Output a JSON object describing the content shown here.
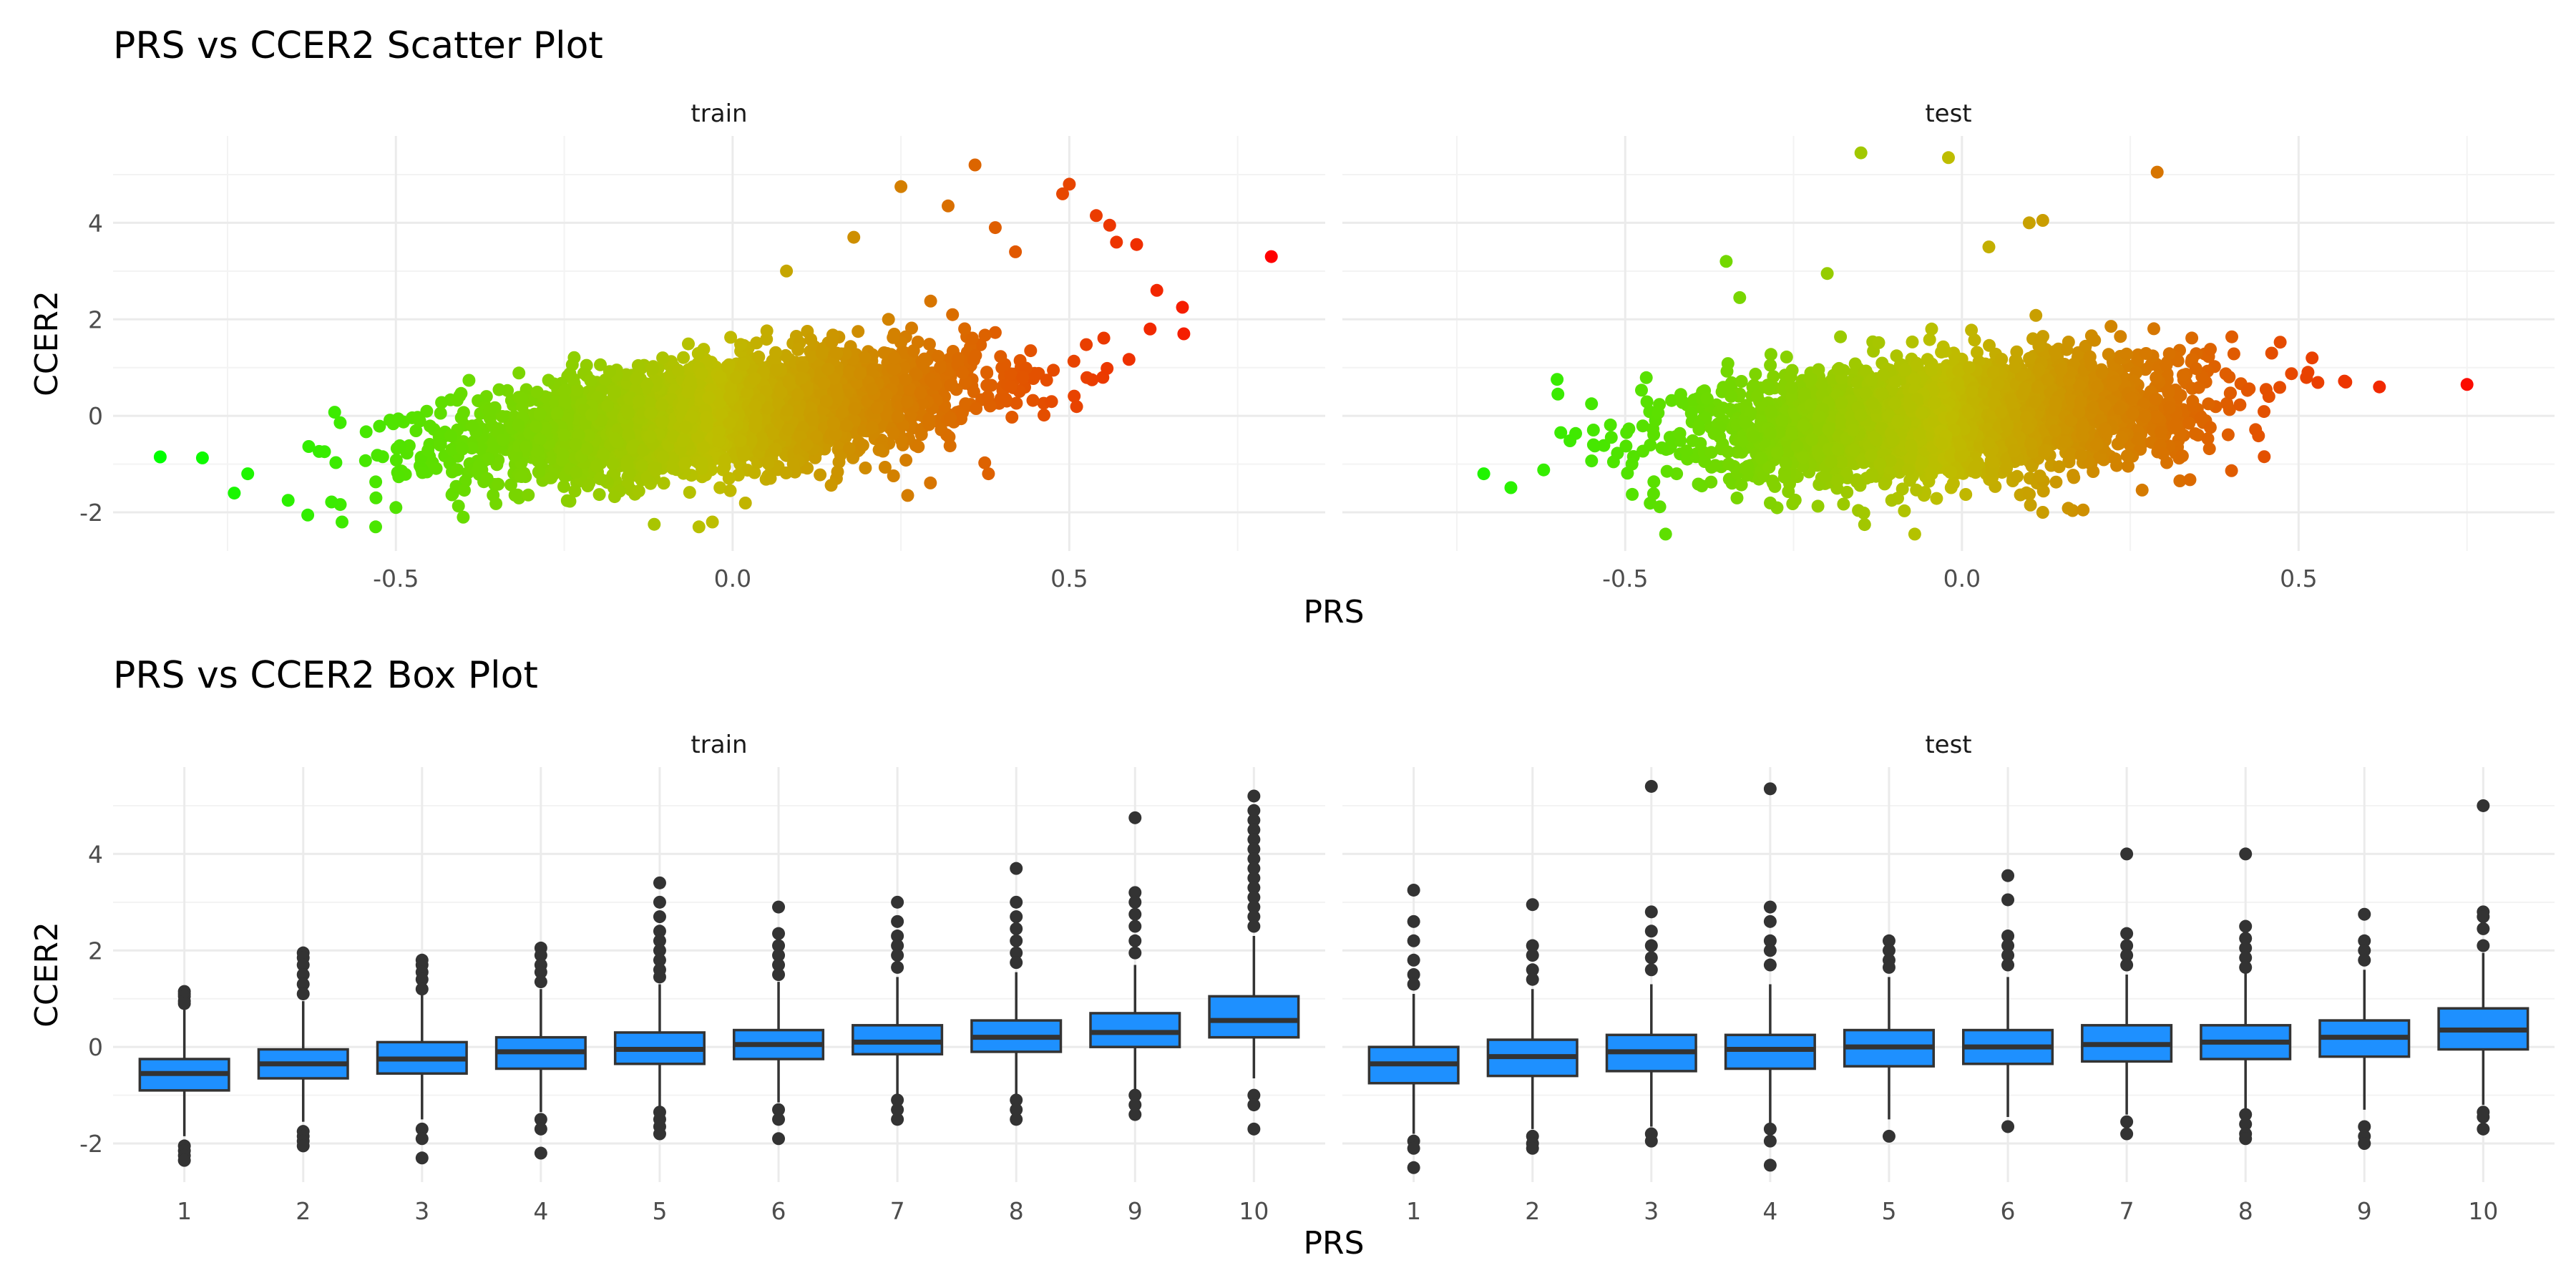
{
  "sections": {
    "scatter_title": "PRS vs CCER2 Scatter Plot",
    "box_title": "PRS vs CCER2 Box Plot"
  },
  "colors": {
    "gradient_low": "#00ff00",
    "gradient_high": "#ff0000",
    "box_fill": "#1e90ff",
    "box_stroke": "#333333",
    "grid_major": "#ebebeb"
  },
  "chart_data": [
    {
      "type": "scatter",
      "title": "PRS vs CCER2 Scatter Plot",
      "xlabel": "PRS",
      "ylabel": "CCER2",
      "facets": [
        "train",
        "test"
      ],
      "xlim": [
        -0.92,
        0.88
      ],
      "ylim": [
        -2.8,
        5.8
      ],
      "xticks": [
        -0.5,
        0.0,
        0.5
      ],
      "xtick_labels": [
        "-0.5",
        "0.0",
        "0.5"
      ],
      "yticks": [
        -2,
        0,
        2,
        4
      ],
      "ytick_labels": [
        "-2",
        "0",
        "2",
        "4"
      ],
      "color_by": "PRS",
      "color_scale": [
        "#00ff00",
        "#ff0000"
      ],
      "cloud": [
        {
          "facet": "train",
          "n": 3200,
          "x_mean": -0.02,
          "x_sd": 0.19,
          "slope": 1.5,
          "intercept": 0.05,
          "noise_sd": 0.55
        },
        {
          "facet": "test",
          "n": 2800,
          "x_mean": -0.02,
          "x_sd": 0.18,
          "slope": 0.9,
          "intercept": 0.0,
          "noise_sd": 0.6
        }
      ],
      "series": [
        {
          "name": "train",
          "points": [
            [
              -0.85,
              -0.85
            ],
            [
              -0.74,
              -1.6
            ],
            [
              -0.72,
              -1.2
            ],
            [
              -0.66,
              -1.75
            ],
            [
              -0.58,
              -2.2
            ],
            [
              -0.53,
              -2.3
            ],
            [
              -0.5,
              -1.9
            ],
            [
              -0.4,
              -2.1
            ],
            [
              0.25,
              4.75
            ],
            [
              0.32,
              4.35
            ],
            [
              0.36,
              5.2
            ],
            [
              0.39,
              3.9
            ],
            [
              0.42,
              3.4
            ],
            [
              0.49,
              4.6
            ],
            [
              0.5,
              4.8
            ],
            [
              0.54,
              4.15
            ],
            [
              0.56,
              3.95
            ],
            [
              0.57,
              3.6
            ],
            [
              0.6,
              3.55
            ],
            [
              0.62,
              1.8
            ],
            [
              0.63,
              2.6
            ],
            [
              0.67,
              1.7
            ],
            [
              0.8,
              3.3
            ],
            [
              0.08,
              3.0
            ],
            [
              0.18,
              3.7
            ],
            [
              -0.03,
              -2.2
            ],
            [
              -0.05,
              -2.3
            ],
            [
              0.26,
              -1.65
            ],
            [
              0.38,
              -1.2
            ]
          ]
        },
        {
          "name": "test",
          "points": [
            [
              -0.71,
              -1.2
            ],
            [
              -0.6,
              0.45
            ],
            [
              -0.55,
              0.25
            ],
            [
              -0.49,
              -1.0
            ],
            [
              -0.44,
              -2.45
            ],
            [
              -0.35,
              3.2
            ],
            [
              -0.33,
              2.45
            ],
            [
              -0.2,
              2.95
            ],
            [
              -0.15,
              5.45
            ],
            [
              -0.02,
              5.35
            ],
            [
              0.04,
              3.5
            ],
            [
              0.1,
              4.0
            ],
            [
              0.12,
              4.05
            ],
            [
              0.29,
              5.05
            ],
            [
              0.46,
              1.3
            ],
            [
              0.52,
              1.2
            ],
            [
              0.57,
              0.7
            ],
            [
              0.62,
              0.6
            ],
            [
              0.75,
              0.65
            ],
            [
              -0.07,
              -2.45
            ],
            [
              0.18,
              -1.95
            ],
            [
              0.12,
              -2.0
            ]
          ]
        }
      ]
    },
    {
      "type": "box",
      "title": "PRS vs CCER2 Box Plot",
      "xlabel": "PRS",
      "ylabel": "CCER2",
      "facets": [
        "train",
        "test"
      ],
      "categories": [
        "1",
        "2",
        "3",
        "4",
        "5",
        "6",
        "7",
        "8",
        "9",
        "10"
      ],
      "ylim": [
        -2.8,
        5.8
      ],
      "yticks": [
        -2,
        0,
        2,
        4
      ],
      "ytick_labels": [
        "-2",
        "0",
        "2",
        "4"
      ],
      "series": [
        {
          "name": "train",
          "boxes": [
            {
              "cat": "1",
              "q1": -0.9,
              "median": -0.55,
              "q3": -0.25,
              "low": -1.85,
              "high": 0.8,
              "outliers": [
                1.15,
                1.1,
                1.05,
                0.95,
                0.9,
                -2.05,
                -2.15,
                -2.25,
                -2.35
              ]
            },
            {
              "cat": "2",
              "q1": -0.65,
              "median": -0.35,
              "q3": -0.05,
              "low": -1.55,
              "high": 0.95,
              "outliers": [
                1.95,
                1.85,
                1.7,
                1.5,
                1.3,
                1.1,
                -1.75,
                -1.85,
                -1.95,
                -2.05
              ]
            },
            {
              "cat": "3",
              "q1": -0.55,
              "median": -0.25,
              "q3": 0.1,
              "low": -1.5,
              "high": 1.1,
              "outliers": [
                1.8,
                1.7,
                1.55,
                1.4,
                1.2,
                -1.7,
                -1.9,
                -2.3
              ]
            },
            {
              "cat": "4",
              "q1": -0.45,
              "median": -0.1,
              "q3": 0.2,
              "low": -1.35,
              "high": 1.2,
              "outliers": [
                2.05,
                1.9,
                1.7,
                1.55,
                1.35,
                -1.5,
                -1.7,
                -2.2
              ]
            },
            {
              "cat": "5",
              "q1": -0.35,
              "median": -0.05,
              "q3": 0.3,
              "low": -1.25,
              "high": 1.3,
              "outliers": [
                3.4,
                3.0,
                2.7,
                2.4,
                2.2,
                2.0,
                1.8,
                1.6,
                1.45,
                -1.35,
                -1.5,
                -1.65,
                -1.8
              ]
            },
            {
              "cat": "6",
              "q1": -0.25,
              "median": 0.05,
              "q3": 0.35,
              "low": -1.15,
              "high": 1.35,
              "outliers": [
                2.9,
                2.35,
                2.1,
                1.9,
                1.7,
                1.5,
                -1.3,
                -1.5,
                -1.9
              ]
            },
            {
              "cat": "7",
              "q1": -0.15,
              "median": 0.1,
              "q3": 0.45,
              "low": -1.05,
              "high": 1.45,
              "outliers": [
                3.0,
                2.6,
                2.3,
                2.1,
                1.9,
                1.65,
                -1.1,
                -1.3,
                -1.5
              ]
            },
            {
              "cat": "8",
              "q1": -0.1,
              "median": 0.2,
              "q3": 0.55,
              "low": -1.0,
              "high": 1.55,
              "outliers": [
                3.7,
                3.0,
                2.7,
                2.45,
                2.2,
                1.95,
                1.75,
                -1.1,
                -1.3,
                -1.5
              ]
            },
            {
              "cat": "9",
              "q1": 0.0,
              "median": 0.3,
              "q3": 0.7,
              "low": -0.9,
              "high": 1.7,
              "outliers": [
                4.75,
                3.2,
                3.0,
                2.75,
                2.5,
                2.2,
                1.95,
                -1.0,
                -1.2,
                -1.4
              ]
            },
            {
              "cat": "10",
              "q1": 0.2,
              "median": 0.55,
              "q3": 1.05,
              "low": -0.65,
              "high": 2.3,
              "outliers": [
                5.2,
                4.9,
                4.7,
                4.5,
                4.3,
                4.1,
                3.9,
                3.7,
                3.5,
                3.3,
                3.1,
                2.9,
                2.7,
                2.5,
                -1.0,
                -1.2,
                -1.7
              ]
            }
          ]
        },
        {
          "name": "test",
          "boxes": [
            {
              "cat": "1",
              "q1": -0.75,
              "median": -0.35,
              "q3": 0.0,
              "low": -1.8,
              "high": 1.1,
              "outliers": [
                3.25,
                2.6,
                2.2,
                1.8,
                1.5,
                1.3,
                -1.95,
                -2.1,
                -2.5
              ]
            },
            {
              "cat": "2",
              "q1": -0.6,
              "median": -0.2,
              "q3": 0.15,
              "low": -1.7,
              "high": 1.2,
              "outliers": [
                2.95,
                2.1,
                1.9,
                1.6,
                1.4,
                -1.85,
                -2.0,
                -2.1
              ]
            },
            {
              "cat": "3",
              "q1": -0.5,
              "median": -0.1,
              "q3": 0.25,
              "low": -1.65,
              "high": 1.3,
              "outliers": [
                5.4,
                2.8,
                2.4,
                2.1,
                1.85,
                1.6,
                -1.8,
                -1.95
              ]
            },
            {
              "cat": "4",
              "q1": -0.45,
              "median": -0.05,
              "q3": 0.25,
              "low": -1.6,
              "high": 1.3,
              "outliers": [
                5.35,
                2.9,
                2.6,
                2.2,
                2.0,
                1.7,
                -1.7,
                -1.95,
                -2.45
              ]
            },
            {
              "cat": "5",
              "q1": -0.4,
              "median": 0.0,
              "q3": 0.35,
              "low": -1.5,
              "high": 1.45,
              "outliers": [
                2.2,
                2.0,
                1.8,
                1.65,
                -1.85
              ]
            },
            {
              "cat": "6",
              "q1": -0.35,
              "median": 0.0,
              "q3": 0.35,
              "low": -1.45,
              "high": 1.45,
              "outliers": [
                3.55,
                3.05,
                2.3,
                2.1,
                1.9,
                1.7,
                -1.65
              ]
            },
            {
              "cat": "7",
              "q1": -0.3,
              "median": 0.05,
              "q3": 0.45,
              "low": -1.4,
              "high": 1.5,
              "outliers": [
                4.0,
                2.35,
                2.1,
                1.9,
                1.7,
                -1.55,
                -1.8
              ]
            },
            {
              "cat": "8",
              "q1": -0.25,
              "median": 0.1,
              "q3": 0.45,
              "low": -1.3,
              "high": 1.55,
              "outliers": [
                4.0,
                2.5,
                2.25,
                2.05,
                1.85,
                1.65,
                -1.4,
                -1.6,
                -1.8,
                -1.9
              ]
            },
            {
              "cat": "9",
              "q1": -0.2,
              "median": 0.2,
              "q3": 0.55,
              "low": -1.3,
              "high": 1.6,
              "outliers": [
                2.75,
                2.2,
                2.0,
                1.8,
                -1.65,
                -1.85,
                -2.0
              ]
            },
            {
              "cat": "10",
              "q1": -0.05,
              "median": 0.35,
              "q3": 0.8,
              "low": -1.2,
              "high": 1.95,
              "outliers": [
                5.0,
                2.8,
                2.7,
                2.45,
                2.1,
                -1.35,
                -1.45,
                -1.7
              ]
            }
          ]
        }
      ]
    }
  ]
}
